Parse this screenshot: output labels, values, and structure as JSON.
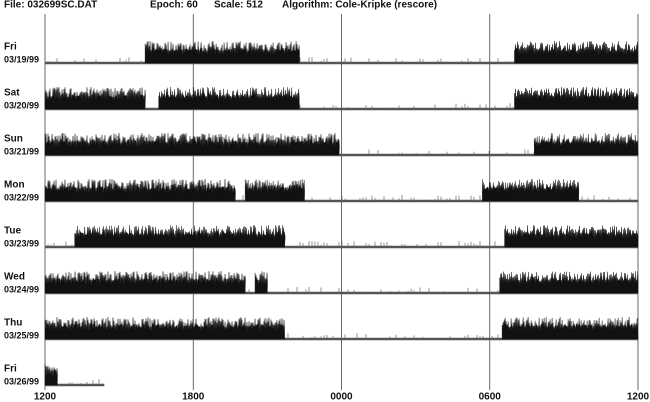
{
  "chart_data": {
    "type": "actogram",
    "header": [
      "File: 032699SC.DAT",
      "Epoch: 60",
      "Scale: 512",
      "Algorithm: Cole-Kripke (rescore)"
    ],
    "xlim": [
      0,
      24
    ],
    "xticks": [
      {
        "value": 0,
        "label": "1200"
      },
      {
        "value": 6,
        "label": "1800"
      },
      {
        "value": 12,
        "label": "0000"
      },
      {
        "value": 18,
        "label": "0600"
      },
      {
        "value": 24,
        "label": "1200"
      }
    ],
    "grid": true,
    "color": "#111111",
    "days": [
      {
        "day": "Fri",
        "date": "03/19/99",
        "active": [
          [
            4.05,
            10.3
          ],
          [
            19.0,
            24
          ]
        ]
      },
      {
        "day": "Sat",
        "date": "03/20/99",
        "active": [
          [
            0,
            4.05
          ],
          [
            4.6,
            10.3
          ],
          [
            19.0,
            24
          ]
        ]
      },
      {
        "day": "Sun",
        "date": "03/21/99",
        "active": [
          [
            0,
            11.9
          ],
          [
            19.8,
            24
          ]
        ]
      },
      {
        "day": "Mon",
        "date": "03/22/99",
        "active": [
          [
            0,
            7.7
          ],
          [
            8.1,
            10.5
          ],
          [
            17.7,
            21.6
          ]
        ]
      },
      {
        "day": "Tue",
        "date": "03/23/99",
        "active": [
          [
            1.2,
            9.7
          ],
          [
            18.6,
            24
          ]
        ]
      },
      {
        "day": "Wed",
        "date": "03/24/99",
        "active": [
          [
            0,
            8.1
          ],
          [
            8.5,
            9.0
          ],
          [
            18.4,
            24
          ]
        ]
      },
      {
        "day": "Thu",
        "date": "03/25/99",
        "active": [
          [
            0,
            9.7
          ],
          [
            18.5,
            24
          ]
        ]
      },
      {
        "day": "Fri",
        "date": "03/26/99",
        "active": [
          [
            0,
            0.5
          ]
        ]
      }
    ]
  }
}
